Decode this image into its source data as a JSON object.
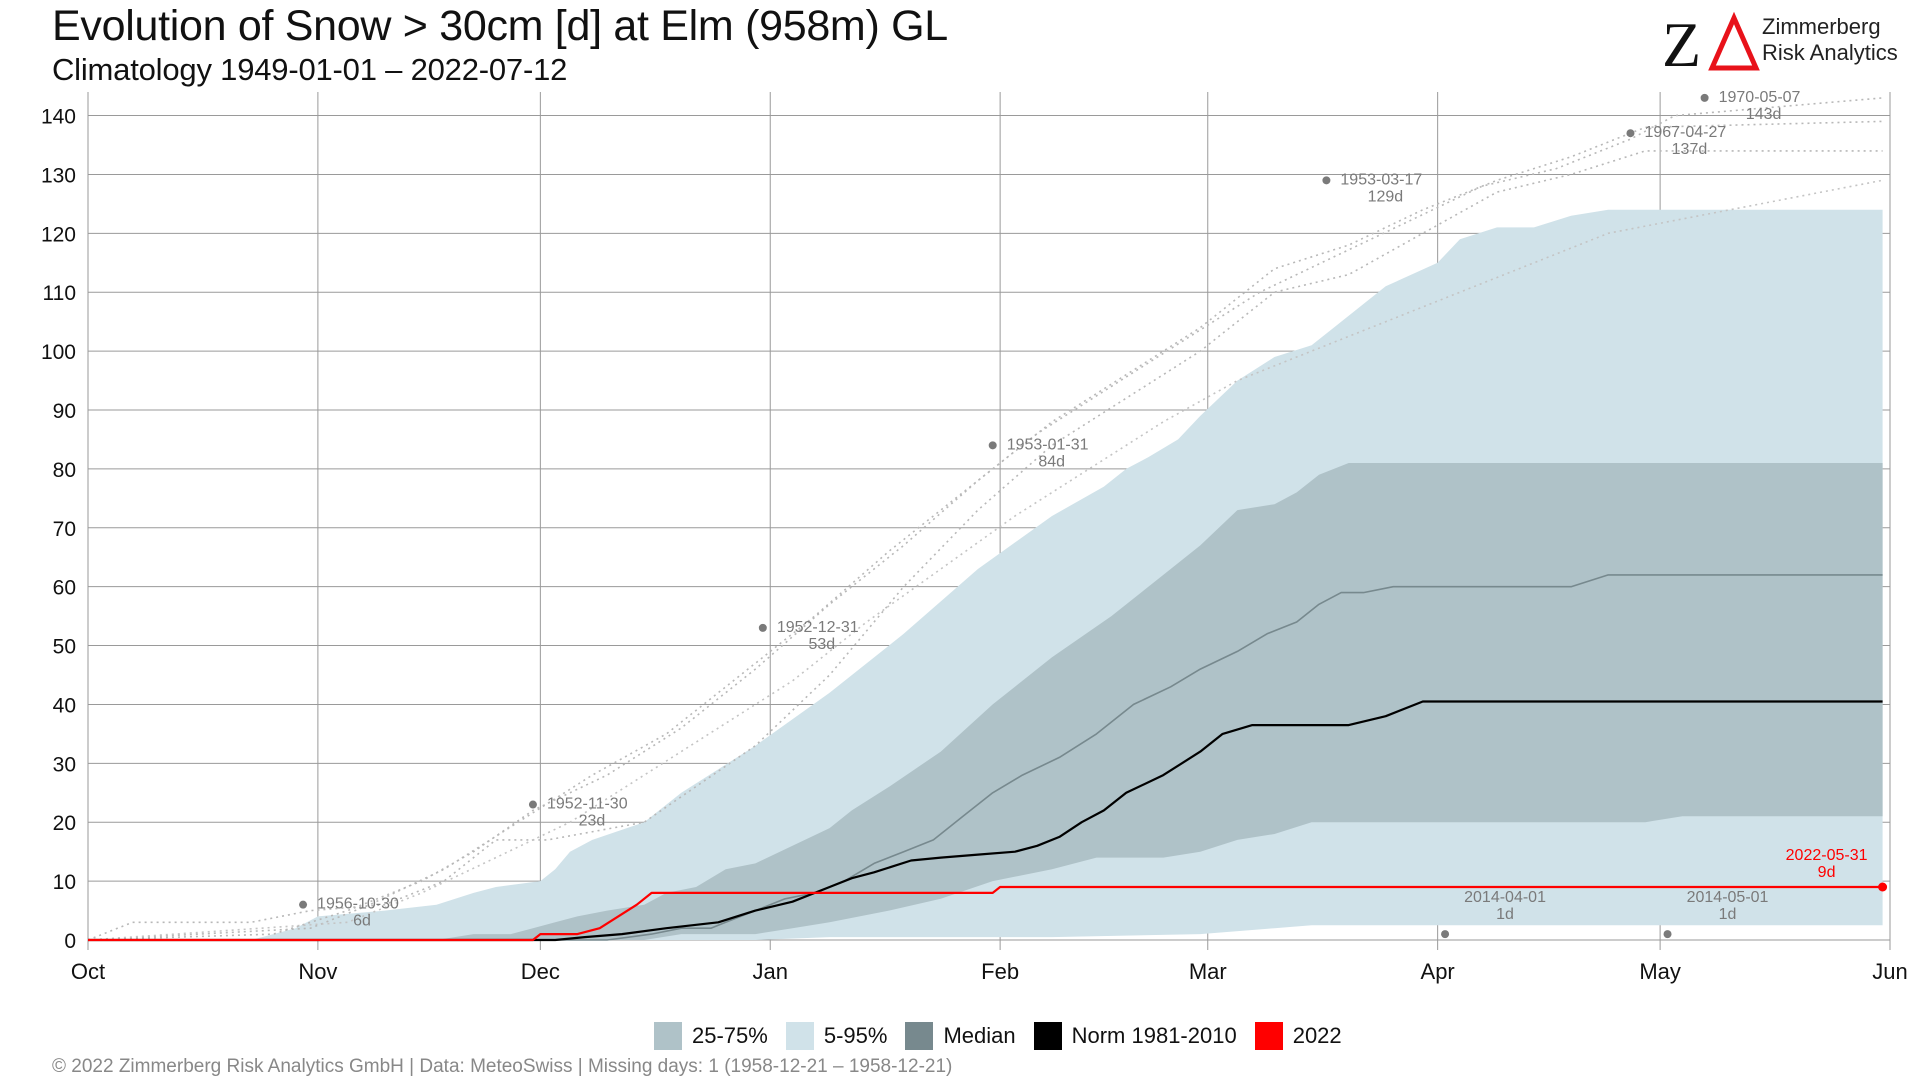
{
  "header": {
    "title": "Evolution of Snow > 30cm [d] at Elm (958m) GL",
    "subtitle": "Climatology 1949-01-01 – 2022-07-12"
  },
  "logo": {
    "mark": "Z",
    "line1": "Zimmerberg",
    "line2": "Risk Analytics",
    "accent_color": "#e8121a"
  },
  "footer": {
    "text": "©  2022 Zimmerberg Risk Analytics GmbH | Data: MeteoSwiss | Missing days: 1 (1958-12-21 – 1958-12-21)"
  },
  "legend": [
    {
      "label": "25-75%",
      "color": "#afc2c8"
    },
    {
      "label": "5-95%",
      "color": "#d0e2e9"
    },
    {
      "label": "Median",
      "color": "#77898e"
    },
    {
      "label": "Norm 1981-2010",
      "color": "#000000"
    },
    {
      "label": "2022",
      "color": "#ff0000"
    }
  ],
  "chart_data": {
    "type": "line",
    "x_unit": "days since Oct 1",
    "xlim": [
      0,
      243
    ],
    "ylim": [
      0,
      144
    ],
    "grid": true,
    "legend_position": "bottom",
    "x_ticks": [
      {
        "label": "Oct",
        "x": 0
      },
      {
        "label": "Nov",
        "x": 31
      },
      {
        "label": "Dec",
        "x": 61
      },
      {
        "label": "Jan",
        "x": 92
      },
      {
        "label": "Feb",
        "x": 123
      },
      {
        "label": "Mar",
        "x": 151
      },
      {
        "label": "Apr",
        "x": 182
      },
      {
        "label": "May",
        "x": 212
      },
      {
        "label": "Jun",
        "x": 243
      }
    ],
    "y_ticks": [
      0,
      10,
      20,
      30,
      40,
      50,
      60,
      70,
      80,
      90,
      100,
      110,
      120,
      130,
      140
    ],
    "band_5_95": {
      "color": "#d0e2e9",
      "upper": [
        [
          0,
          0
        ],
        [
          22,
          0
        ],
        [
          28,
          2
        ],
        [
          31,
          4
        ],
        [
          40,
          5
        ],
        [
          47,
          6
        ],
        [
          52,
          8
        ],
        [
          55,
          9
        ],
        [
          61,
          10
        ],
        [
          63,
          12
        ],
        [
          65,
          15
        ],
        [
          68,
          17
        ],
        [
          75,
          20
        ],
        [
          80,
          25
        ],
        [
          90,
          33
        ],
        [
          100,
          42
        ],
        [
          110,
          52
        ],
        [
          120,
          63
        ],
        [
          130,
          72
        ],
        [
          137,
          77
        ],
        [
          140,
          80
        ],
        [
          143,
          82
        ],
        [
          147,
          85
        ],
        [
          150,
          89
        ],
        [
          155,
          95
        ],
        [
          160,
          99
        ],
        [
          165,
          101
        ],
        [
          168,
          104
        ],
        [
          175,
          111
        ],
        [
          182,
          115
        ],
        [
          185,
          119
        ],
        [
          190,
          121
        ],
        [
          195,
          121
        ],
        [
          200,
          123
        ],
        [
          205,
          124
        ],
        [
          242,
          124
        ]
      ],
      "lower": [
        [
          0,
          0
        ],
        [
          90,
          0
        ],
        [
          100,
          0.5
        ],
        [
          130,
          0.5
        ],
        [
          150,
          1
        ],
        [
          160,
          2
        ],
        [
          165,
          2.5
        ],
        [
          242,
          2.5
        ]
      ]
    },
    "band_25_75": {
      "color": "#afc2c8",
      "upper": [
        [
          0,
          0
        ],
        [
          47,
          0
        ],
        [
          52,
          1
        ],
        [
          57,
          1
        ],
        [
          60,
          2
        ],
        [
          63,
          3
        ],
        [
          66,
          4
        ],
        [
          70,
          5
        ],
        [
          75,
          6
        ],
        [
          78,
          8
        ],
        [
          82,
          9
        ],
        [
          86,
          12
        ],
        [
          90,
          13
        ],
        [
          95,
          16
        ],
        [
          100,
          19
        ],
        [
          103,
          22
        ],
        [
          108,
          26
        ],
        [
          115,
          32
        ],
        [
          122,
          40
        ],
        [
          130,
          48
        ],
        [
          138,
          55
        ],
        [
          145,
          62
        ],
        [
          150,
          67
        ],
        [
          155,
          73
        ],
        [
          160,
          74
        ],
        [
          163,
          76
        ],
        [
          166,
          79
        ],
        [
          170,
          81
        ],
        [
          205,
          81
        ],
        [
          242,
          81
        ]
      ],
      "lower": [
        [
          0,
          0
        ],
        [
          60,
          0
        ],
        [
          70,
          0
        ],
        [
          75,
          0
        ],
        [
          80,
          1
        ],
        [
          84,
          1
        ],
        [
          90,
          1
        ],
        [
          95,
          2
        ],
        [
          100,
          3
        ],
        [
          108,
          5
        ],
        [
          115,
          7
        ],
        [
          122,
          10
        ],
        [
          130,
          12
        ],
        [
          136,
          14
        ],
        [
          145,
          14
        ],
        [
          150,
          15
        ],
        [
          155,
          17
        ],
        [
          160,
          18
        ],
        [
          165,
          20
        ],
        [
          210,
          20
        ],
        [
          215,
          21
        ],
        [
          242,
          21
        ]
      ]
    },
    "series": [
      {
        "name": "Median",
        "color": "#77898e",
        "width": 1.6,
        "points": [
          [
            0,
            0
          ],
          [
            70,
            0
          ],
          [
            76,
            1
          ],
          [
            80,
            2
          ],
          [
            84,
            2
          ],
          [
            86,
            3
          ],
          [
            90,
            5
          ],
          [
            94,
            7
          ],
          [
            98,
            8
          ],
          [
            102,
            10
          ],
          [
            106,
            13
          ],
          [
            110,
            15
          ],
          [
            114,
            17
          ],
          [
            118,
            21
          ],
          [
            122,
            25
          ],
          [
            126,
            28
          ],
          [
            131,
            31
          ],
          [
            136,
            35
          ],
          [
            141,
            40
          ],
          [
            146,
            43
          ],
          [
            150,
            46
          ],
          [
            155,
            49
          ],
          [
            159,
            52
          ],
          [
            163,
            54
          ],
          [
            166,
            57
          ],
          [
            169,
            59
          ],
          [
            172,
            59
          ],
          [
            176,
            60
          ],
          [
            183,
            60
          ],
          [
            190,
            60
          ],
          [
            200,
            60
          ],
          [
            205,
            62
          ],
          [
            210,
            62
          ],
          [
            242,
            62
          ]
        ]
      },
      {
        "name": "Norm 1981-2010",
        "color": "#000000",
        "width": 2.2,
        "points": [
          [
            0,
            0
          ],
          [
            63,
            0
          ],
          [
            67,
            0.5
          ],
          [
            72,
            1
          ],
          [
            78,
            2
          ],
          [
            85,
            3
          ],
          [
            90,
            5
          ],
          [
            95,
            6.5
          ],
          [
            100,
            9
          ],
          [
            103,
            10.5
          ],
          [
            106,
            11.5
          ],
          [
            111,
            13.5
          ],
          [
            115,
            14
          ],
          [
            120,
            14.5
          ],
          [
            125,
            15
          ],
          [
            128,
            16
          ],
          [
            131,
            17.5
          ],
          [
            134,
            20
          ],
          [
            137,
            22
          ],
          [
            140,
            25
          ],
          [
            145,
            28
          ],
          [
            150,
            32
          ],
          [
            153,
            35
          ],
          [
            157,
            36.5
          ],
          [
            160,
            36.5
          ],
          [
            170,
            36.5
          ],
          [
            175,
            38
          ],
          [
            180,
            40.5
          ],
          [
            185,
            40.5
          ],
          [
            242,
            40.5
          ]
        ]
      },
      {
        "name": "2022",
        "color": "#ff0000",
        "width": 2.2,
        "points": [
          [
            0,
            0
          ],
          [
            60,
            0
          ],
          [
            61,
            1
          ],
          [
            66,
            1
          ],
          [
            69,
            2
          ],
          [
            74,
            6
          ],
          [
            76,
            8
          ],
          [
            90,
            8
          ],
          [
            122,
            8
          ],
          [
            123,
            9
          ],
          [
            242,
            9
          ]
        ]
      }
    ],
    "record_lines": [
      {
        "color": "#b8b8b8",
        "points": [
          [
            0,
            0
          ],
          [
            6,
            3
          ],
          [
            22,
            3
          ],
          [
            30,
            5
          ],
          [
            40,
            6
          ],
          [
            48,
            10
          ],
          [
            55,
            17
          ],
          [
            62,
            17
          ],
          [
            75,
            20
          ],
          [
            90,
            33
          ],
          [
            100,
            45
          ],
          [
            110,
            60
          ],
          [
            120,
            73
          ],
          [
            130,
            84
          ],
          [
            140,
            92
          ],
          [
            150,
            100
          ],
          [
            160,
            110
          ],
          [
            170,
            113
          ],
          [
            180,
            120
          ],
          [
            190,
            127
          ],
          [
            200,
            130
          ],
          [
            210,
            134
          ],
          [
            242,
            134
          ]
        ]
      },
      {
        "color": "#b8b8b8",
        "points": [
          [
            0,
            0
          ],
          [
            25,
            1
          ],
          [
            35,
            5
          ],
          [
            45,
            10
          ],
          [
            52,
            15
          ],
          [
            60,
            22
          ],
          [
            70,
            28
          ],
          [
            80,
            36
          ],
          [
            90,
            46
          ],
          [
            100,
            57
          ],
          [
            110,
            67
          ],
          [
            120,
            78
          ],
          [
            130,
            88
          ],
          [
            140,
            96
          ],
          [
            150,
            104
          ],
          [
            160,
            114
          ],
          [
            170,
            118
          ],
          [
            180,
            124
          ],
          [
            190,
            129
          ],
          [
            200,
            133
          ],
          [
            210,
            138
          ],
          [
            242,
            139
          ]
        ]
      },
      {
        "color": "#b8b8b8",
        "points": [
          [
            0,
            0
          ],
          [
            30,
            2
          ],
          [
            38,
            6
          ],
          [
            48,
            12
          ],
          [
            58,
            20
          ],
          [
            68,
            28
          ],
          [
            78,
            35
          ],
          [
            88,
            45
          ],
          [
            98,
            55
          ],
          [
            108,
            66
          ],
          [
            118,
            76
          ],
          [
            128,
            86
          ],
          [
            138,
            94
          ],
          [
            148,
            102
          ],
          [
            158,
            110
          ],
          [
            168,
            116
          ],
          [
            178,
            122
          ],
          [
            188,
            128
          ],
          [
            198,
            131
          ],
          [
            208,
            136
          ],
          [
            214,
            140
          ],
          [
            242,
            143
          ]
        ]
      },
      {
        "color": "#c4c4c4",
        "points": [
          [
            0,
            0
          ],
          [
            35,
            3
          ],
          [
            45,
            8
          ],
          [
            55,
            14
          ],
          [
            65,
            20
          ],
          [
            75,
            28
          ],
          [
            85,
            36
          ],
          [
            95,
            44
          ],
          [
            105,
            54
          ],
          [
            115,
            63
          ],
          [
            125,
            72
          ],
          [
            135,
            80
          ],
          [
            145,
            88
          ],
          [
            155,
            95
          ],
          [
            165,
            100
          ],
          [
            175,
            105
          ],
          [
            185,
            110
          ],
          [
            195,
            115
          ],
          [
            205,
            120
          ],
          [
            242,
            129
          ]
        ]
      }
    ],
    "records": [
      {
        "x": 29,
        "y": 6,
        "date": "1956-10-30",
        "value": "6d",
        "color": "#7a7a7a"
      },
      {
        "x": 60,
        "y": 23,
        "date": "1952-11-30",
        "value": "23d",
        "color": "#7a7a7a"
      },
      {
        "x": 91,
        "y": 53,
        "date": "1952-12-31",
        "value": "53d",
        "color": "#7a7a7a"
      },
      {
        "x": 122,
        "y": 84,
        "date": "1953-01-31",
        "value": "84d",
        "color": "#7a7a7a"
      },
      {
        "x": 167,
        "y": 129,
        "date": "1953-03-17",
        "value": "129d",
        "color": "#7a7a7a"
      },
      {
        "x": 208,
        "y": 137,
        "date": "1967-04-27",
        "value": "137d",
        "color": "#7a7a7a"
      },
      {
        "x": 218,
        "y": 143,
        "date": "1970-05-07",
        "value": "143d",
        "color": "#7a7a7a"
      }
    ],
    "minima": [
      {
        "x": 183,
        "y": 1,
        "date": "2014-04-01",
        "value": "1d",
        "color": "#7a7a7a"
      },
      {
        "x": 213,
        "y": 1,
        "date": "2014-05-01",
        "value": "1d",
        "color": "#7a7a7a"
      }
    ],
    "current": {
      "x": 242,
      "y": 9,
      "date": "2022-05-31",
      "value": "9d",
      "color": "#ff0000"
    }
  }
}
